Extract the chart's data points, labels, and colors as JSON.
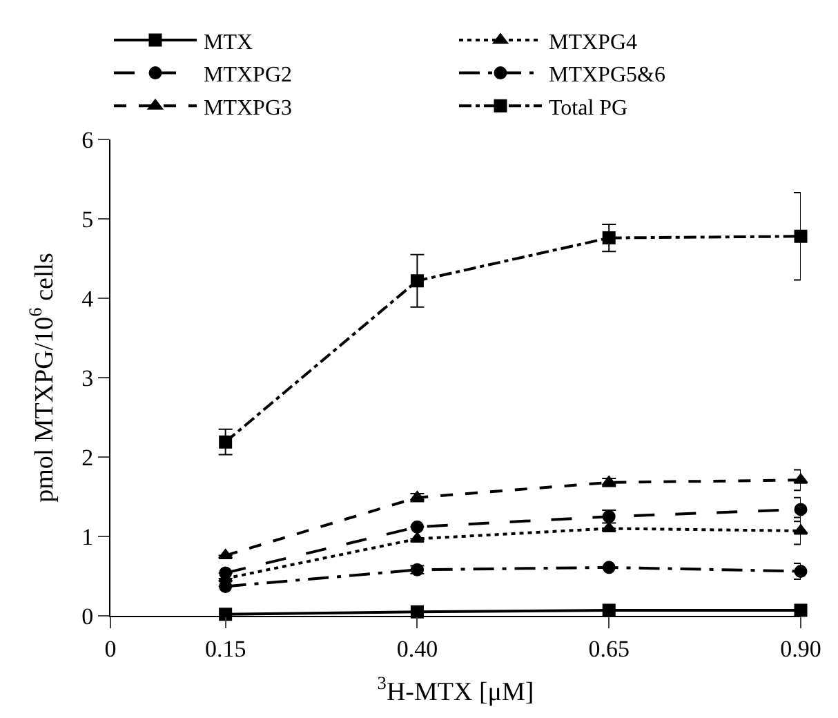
{
  "chart_data": {
    "type": "line",
    "xlabel": "$^{3}$H-MTX [μM]",
    "ylabel": "pmol MTXPG/10$^{6}$ cells",
    "x": [
      0.15,
      0.4,
      0.65,
      0.9
    ],
    "xlim": [
      0,
      0.9
    ],
    "xticks": [
      0,
      {
        "value": 0.15,
        "label": "0.15"
      },
      {
        "value": 0.4,
        "label": "0.40"
      },
      {
        "value": 0.65,
        "label": "0.65"
      },
      {
        "value": 0.9,
        "label": "0.90"
      }
    ],
    "ylim": [
      0,
      6
    ],
    "yticks": [
      0,
      1,
      2,
      3,
      4,
      5,
      6
    ],
    "legend": "top",
    "series": [
      {
        "name": "MTX",
        "color": "#000000",
        "values": [
          0.02,
          0.05,
          0.07,
          0.07
        ],
        "marker": "square",
        "line_style": "solid"
      },
      {
        "name": "MTXPG4",
        "color": "#000000",
        "values": [
          0.47,
          0.97,
          1.1,
          1.07
        ],
        "errors": [
          null,
          null,
          null,
          0.17
        ],
        "marker": "triangle",
        "line_style": "dotted"
      },
      {
        "name": "MTXPG2",
        "color": "#000000",
        "values": [
          0.54,
          1.12,
          1.25,
          1.34
        ],
        "errors": [
          null,
          null,
          0.08,
          0.15
        ],
        "marker": "circle",
        "line_style": "longdash"
      },
      {
        "name": "MTXPG5&6",
        "color": "#000000",
        "values": [
          0.37,
          0.58,
          0.61,
          0.56
        ],
        "errors": [
          null,
          0.05,
          null,
          0.1
        ],
        "marker": "circle",
        "line_style": "longdashdot"
      },
      {
        "name": "MTXPG3",
        "color": "#000000",
        "values": [
          0.76,
          1.49,
          1.68,
          1.71
        ],
        "errors": [
          null,
          0.05,
          0.05,
          0.13
        ],
        "marker": "triangle",
        "line_style": "dashed"
      },
      {
        "name": "Total PG",
        "color": "#000000",
        "values": [
          2.19,
          4.22,
          4.76,
          4.78
        ],
        "errors": [
          0.16,
          0.33,
          0.17,
          0.55
        ],
        "marker": "square",
        "line_style": "dashdot"
      }
    ]
  }
}
